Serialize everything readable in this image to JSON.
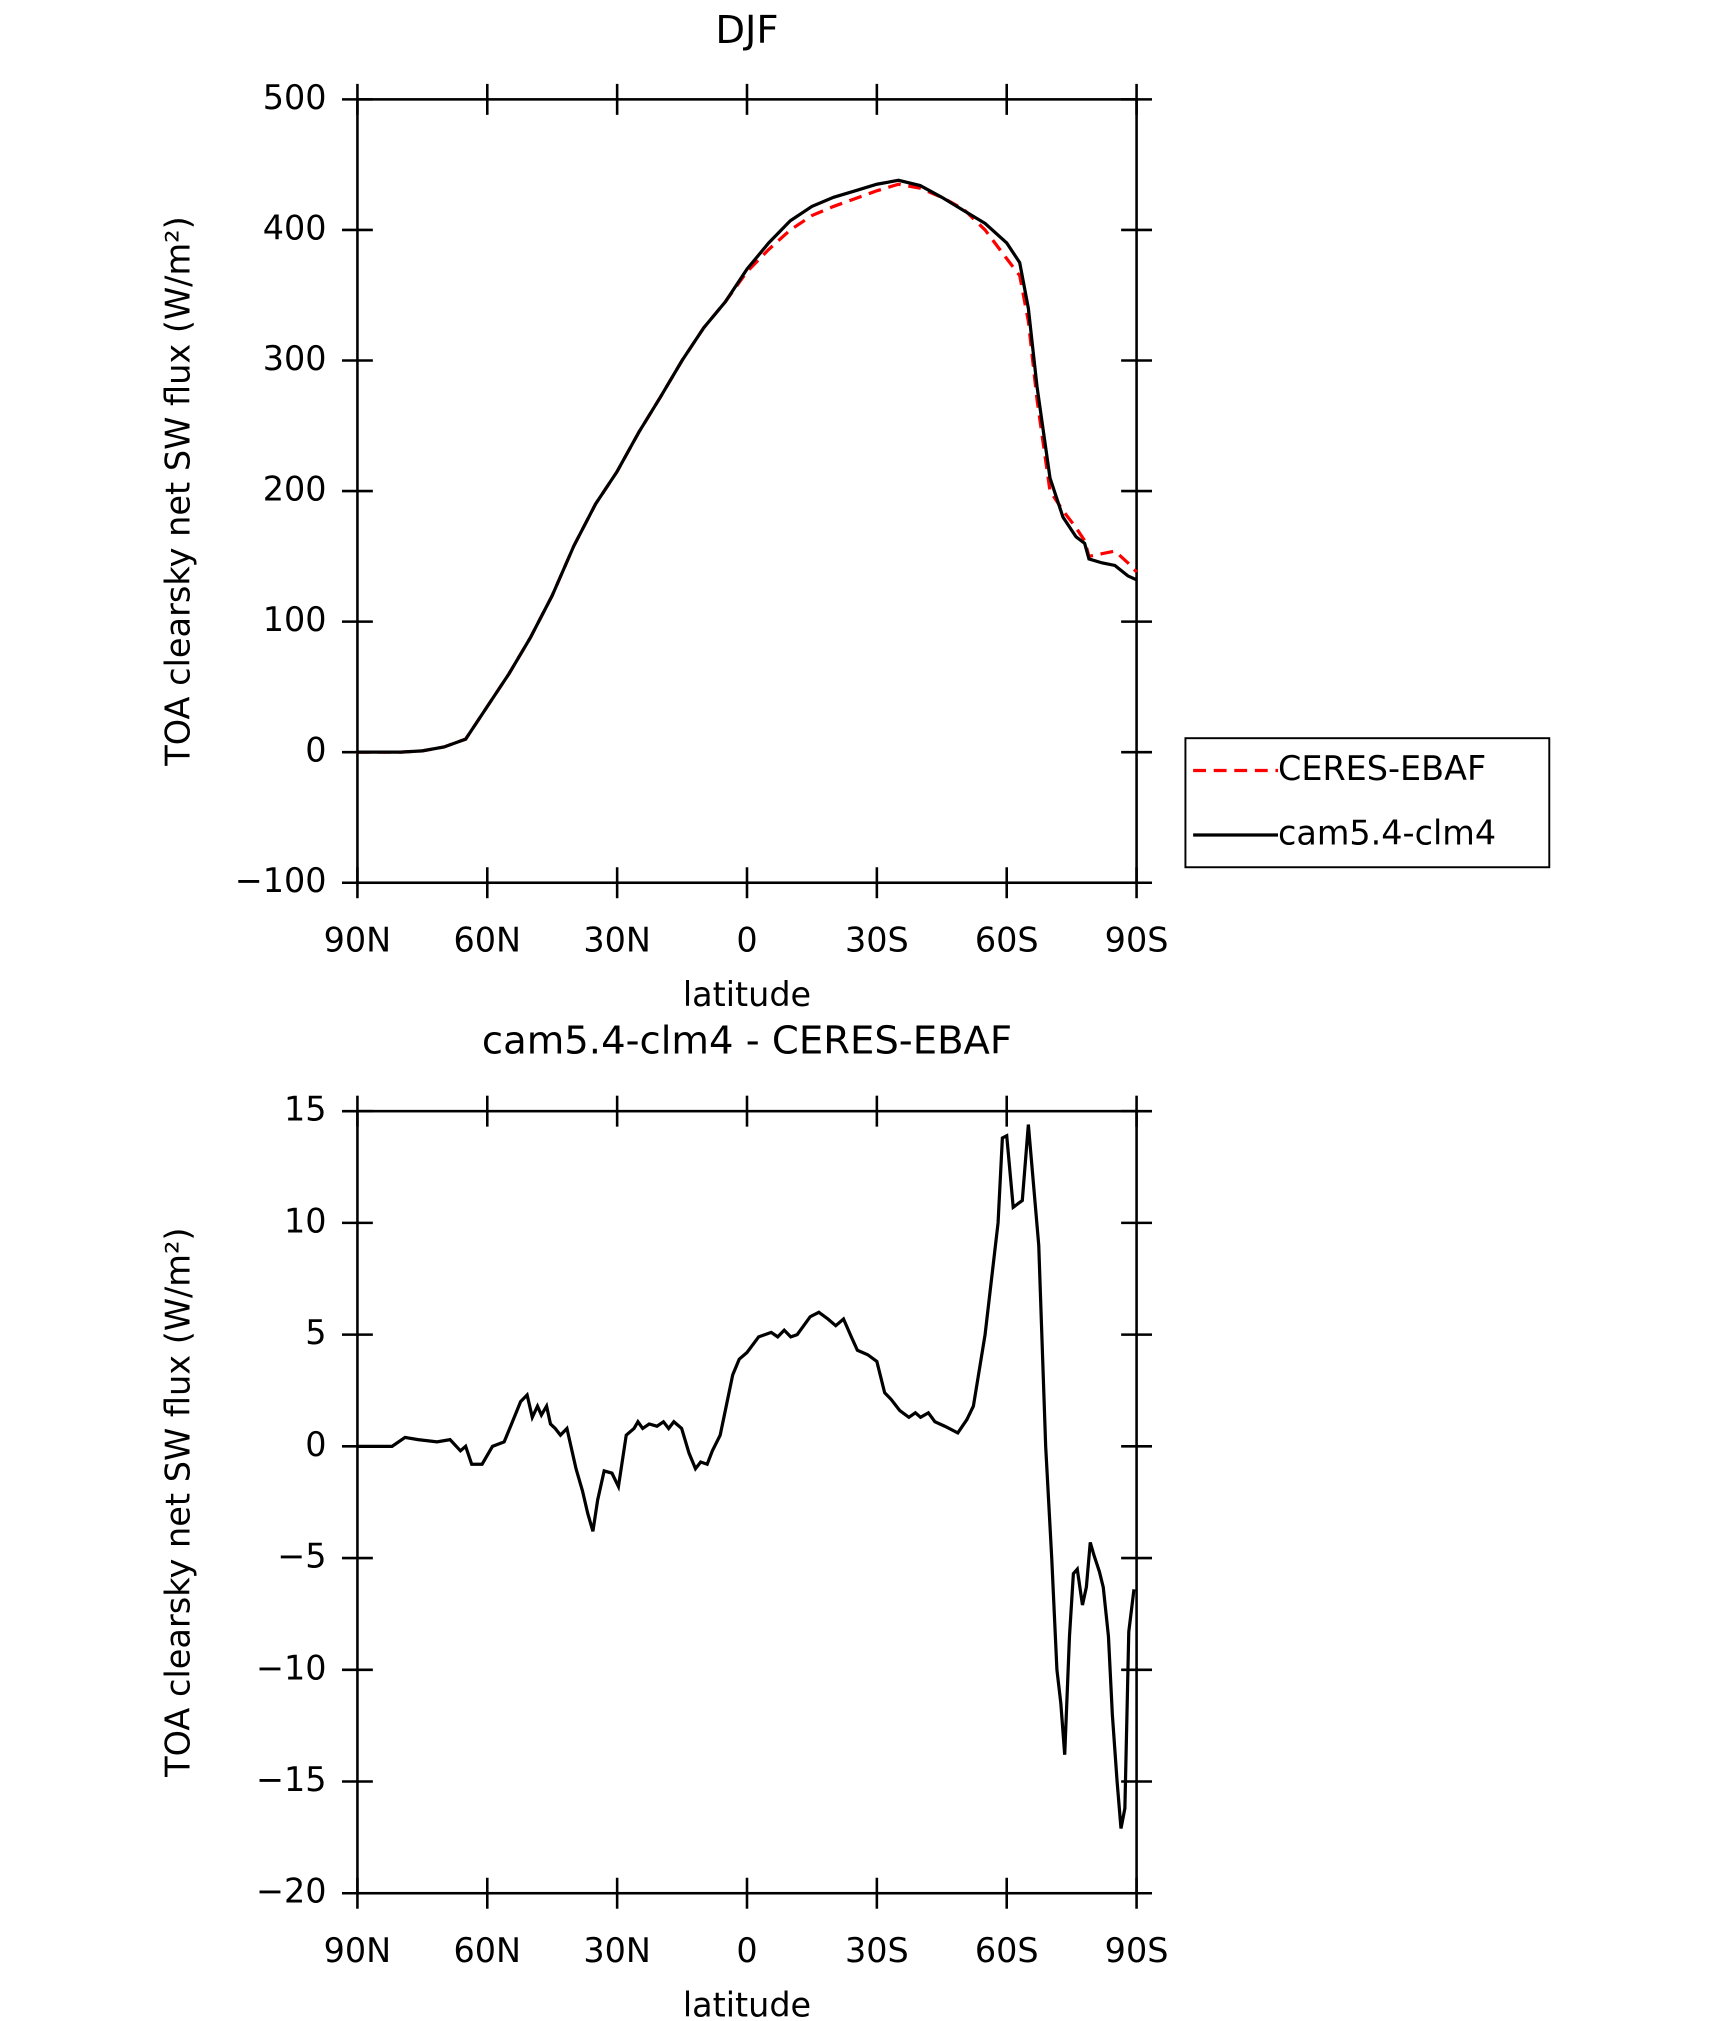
{
  "chart_data": [
    {
      "type": "line",
      "title": "DJF",
      "xlabel": "latitude",
      "ylabel": "TOA clearsky net SW flux (W/m²)",
      "xlim": [
        90,
        -90
      ],
      "ylim": [
        -100,
        500
      ],
      "xticks": [
        {
          "value": 90,
          "label": "90N"
        },
        {
          "value": 60,
          "label": "60N"
        },
        {
          "value": 30,
          "label": "30N"
        },
        0,
        {
          "value": -30,
          "label": "30S"
        },
        {
          "value": -60,
          "label": "60S"
        },
        {
          "value": -90,
          "label": "90S"
        }
      ],
      "yticks": [
        {
          "value": -100,
          "label": "−100"
        },
        0,
        100,
        200,
        300,
        400,
        500
      ],
      "legend": "right",
      "x": [
        90,
        85,
        80,
        75,
        70,
        65,
        60,
        55,
        50,
        45,
        40,
        35,
        30,
        25,
        20,
        15,
        10,
        5,
        0,
        -5,
        -10,
        -15,
        -20,
        -25,
        -30,
        -35,
        -40,
        -45,
        -50,
        -55,
        -60,
        -63,
        -65,
        -67,
        -70,
        -73,
        -76,
        -78,
        -79,
        -82,
        -85,
        -88,
        -90
      ],
      "series": [
        {
          "name": "CERES-EBAF",
          "color": "#ff0000",
          "dash": "dashed",
          "values": [
            0,
            0,
            0,
            1,
            4,
            10,
            35,
            60,
            88,
            120,
            158,
            190,
            215,
            245,
            272,
            300,
            325,
            345,
            368,
            385,
            400,
            411,
            418,
            424,
            430,
            435,
            432,
            425,
            416,
            400,
            378,
            365,
            330,
            270,
            200,
            185,
            172,
            162,
            150,
            152,
            154,
            145,
            138
          ]
        },
        {
          "name": "cam5.4-clm4",
          "color": "#000000",
          "dash": "solid",
          "values": [
            0,
            0,
            0,
            1,
            4,
            10,
            35,
            60,
            88,
            120,
            158,
            190,
            215,
            245,
            272,
            300,
            325,
            345,
            370,
            390,
            407,
            418,
            425,
            430,
            435,
            438,
            434,
            425,
            415,
            405,
            390,
            375,
            340,
            280,
            210,
            180,
            165,
            160,
            148,
            145,
            143,
            135,
            132
          ]
        }
      ]
    },
    {
      "type": "line",
      "title": "cam5.4-clm4 - CERES-EBAF",
      "xlabel": "latitude",
      "ylabel": "TOA clearsky net SW flux (W/m²)",
      "xlim": [
        90,
        -90
      ],
      "ylim": [
        -20,
        15
      ],
      "xticks": [
        {
          "value": 90,
          "label": "90N"
        },
        {
          "value": 60,
          "label": "60N"
        },
        {
          "value": 30,
          "label": "30N"
        },
        0,
        {
          "value": -30,
          "label": "30S"
        },
        {
          "value": -60,
          "label": "60S"
        },
        {
          "value": -90,
          "label": "90S"
        }
      ],
      "yticks": [
        {
          "value": -20,
          "label": "−20"
        },
        {
          "value": -15,
          "label": "−15"
        },
        {
          "value": -10,
          "label": "−10"
        },
        {
          "value": -5,
          "label": "−5"
        },
        0,
        5,
        10,
        15
      ],
      "x": [
        90,
        82,
        79,
        76,
        71.6,
        68.6,
        66.2,
        65,
        63.6,
        61.2,
        58.8,
        56.1,
        54.4,
        52.3,
        50.8,
        49.6,
        48.4,
        47.5,
        46.3,
        45.4,
        44.3,
        43.1,
        41.6,
        39.5,
        38,
        36.8,
        35.6,
        34.5,
        33,
        31.2,
        29.7,
        27.9,
        26.1,
        25.2,
        24.1,
        22.6,
        20.8,
        19.3,
        18.1,
        16.9,
        15.1,
        13.4,
        11.9,
        10.7,
        9.2,
        8,
        6.2,
        4.8,
        3.3,
        1.8,
        0,
        -2.7,
        -5.6,
        -7.1,
        -8.6,
        -10.1,
        -11.6,
        -13.1,
        -14.6,
        -16.6,
        -18.7,
        -20.5,
        -22.3,
        -24.1,
        -25.5,
        -27.9,
        -30,
        -31.8,
        -33.3,
        -35.3,
        -37.4,
        -38.9,
        -40.1,
        -41.9,
        -43.4,
        -45.7,
        -48.7,
        -50.8,
        -52.3,
        -55,
        -58,
        -59,
        -60,
        -61.5,
        -63.6,
        -65,
        -67.4,
        -69,
        -70.4,
        -71.6,
        -72.5,
        -73.4,
        -74.5,
        -75.4,
        -76.3,
        -77.5,
        -78.4,
        -79.3,
        -80.2,
        -81.4,
        -82.3,
        -83.5,
        -84.4,
        -85.5,
        -86.4,
        -87.3,
        -88.2,
        -89.4
      ],
      "series": [
        {
          "color": "#000000",
          "dash": "solid",
          "values": [
            0,
            0,
            0.4,
            0.3,
            0.2,
            0.3,
            -0.2,
            0,
            -0.8,
            -0.8,
            0,
            0.2,
            1,
            2,
            2.3,
            1.3,
            1.8,
            1.4,
            1.8,
            1,
            0.8,
            0.5,
            0.8,
            -1,
            -2,
            -3,
            -3.8,
            -2.4,
            -1.1,
            -1.2,
            -1.8,
            0.5,
            0.8,
            1.1,
            0.8,
            1,
            0.9,
            1.1,
            0.8,
            1.1,
            0.8,
            -0.3,
            -1,
            -0.7,
            -0.8,
            -0.2,
            0.5,
            1.8,
            3.2,
            3.9,
            4.2,
            4.9,
            5.1,
            4.9,
            5.2,
            4.9,
            5,
            5.4,
            5.8,
            6,
            5.7,
            5.4,
            5.7,
            4.9,
            4.3,
            4.1,
            3.8,
            2.4,
            2.1,
            1.6,
            1.3,
            1.5,
            1.3,
            1.5,
            1.1,
            0.9,
            0.6,
            1.2,
            1.8,
            5,
            10,
            13.8,
            13.9,
            10.7,
            11,
            14.4,
            9,
            0,
            -5,
            -10,
            -11.5,
            -13.8,
            -8.5,
            -5.7,
            -5.5,
            -7.1,
            -6.3,
            -4.3,
            -4.9,
            -5.6,
            -6.3,
            -8.5,
            -12,
            -15,
            -17.1,
            -16.2,
            -8.3,
            -6.4
          ]
        }
      ]
    }
  ]
}
